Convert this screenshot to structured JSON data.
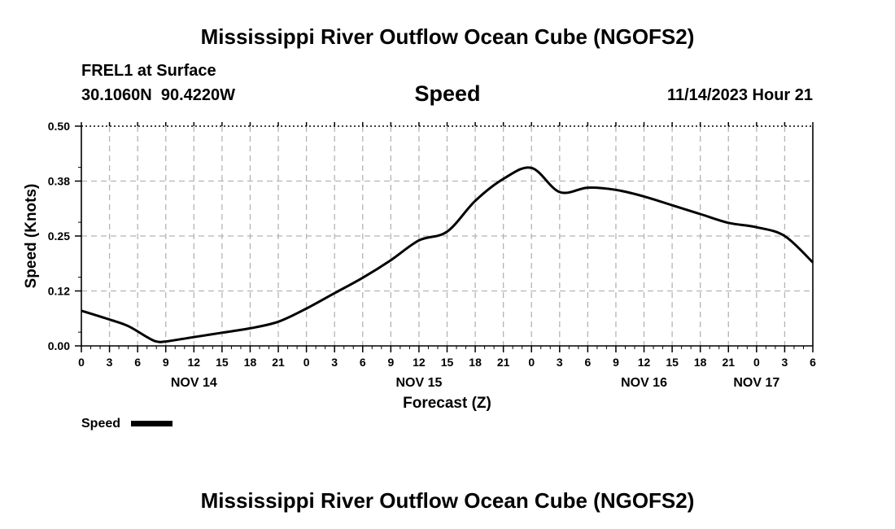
{
  "header": {
    "title": "Mississippi River Outflow Ocean Cube (NGOFS2)",
    "station": "FREL1 at Surface",
    "coordinates": "30.1060N  90.4220W",
    "datetime": "11/14/2023 Hour 21",
    "footer_title": "Mississippi River Outflow Ocean Cube (NGOFS2)"
  },
  "chart_data": {
    "type": "line",
    "title": "Speed",
    "xlabel": "Forecast (Z)",
    "ylabel": "Speed (Knots)",
    "ylim": [
      0,
      0.5
    ],
    "yticks": [
      "0.00",
      "0.12",
      "0.25",
      "0.38",
      "0.50"
    ],
    "xlim_hours": [
      0,
      78
    ],
    "xtick_labels": [
      "0",
      "3",
      "6",
      "9",
      "12",
      "15",
      "18",
      "21",
      "0",
      "3",
      "6",
      "9",
      "12",
      "15",
      "18",
      "21",
      "0",
      "3",
      "6",
      "9",
      "12",
      "15",
      "18",
      "21",
      "0",
      "3",
      "6"
    ],
    "date_labels": [
      {
        "label": "NOV 14",
        "hour": 12
      },
      {
        "label": "NOV 15",
        "hour": 36
      },
      {
        "label": "NOV 16",
        "hour": 60
      },
      {
        "label": "NOV 17",
        "hour": 72
      }
    ],
    "grid": true,
    "legend": {
      "label": "Speed",
      "placement": "bottom-left"
    },
    "series": [
      {
        "name": "Speed",
        "color": "#000000",
        "x": [
          0,
          3,
          5,
          7,
          8,
          9,
          12,
          15,
          18,
          21,
          24,
          27,
          30,
          33,
          36,
          39,
          42,
          45,
          48,
          51,
          54,
          57,
          60,
          63,
          66,
          69,
          72,
          75,
          78
        ],
        "y": [
          0.08,
          0.06,
          0.045,
          0.02,
          0.01,
          0.01,
          0.02,
          0.03,
          0.04,
          0.055,
          0.085,
          0.12,
          0.155,
          0.195,
          0.24,
          0.26,
          0.33,
          0.38,
          0.405,
          0.35,
          0.36,
          0.355,
          0.34,
          0.32,
          0.3,
          0.28,
          0.27,
          0.25,
          0.19
        ]
      }
    ]
  }
}
